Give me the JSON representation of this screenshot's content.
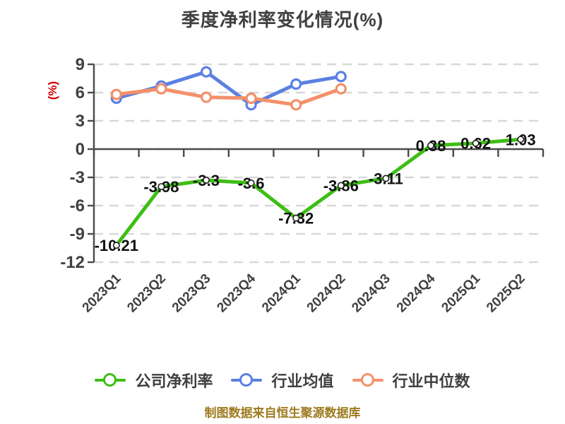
{
  "page": {
    "background": "#ffffff"
  },
  "chart_data": {
    "type": "line",
    "title": "季度净利率变化情况(%)",
    "ylabel": "(%)",
    "footer": "制图数据来自恒生聚源数据库",
    "categories": [
      "2023Q1",
      "2023Q2",
      "2023Q3",
      "2023Q4",
      "2024Q1",
      "2024Q2",
      "2024Q3",
      "2024Q4",
      "2025Q1",
      "2025Q2"
    ],
    "ylim": [
      -12,
      9
    ],
    "yticks": [
      9,
      6,
      3,
      0,
      -3,
      -6,
      -9,
      -12
    ],
    "grid": "horizontal-dashed",
    "legend_position": "bottom",
    "series": [
      {
        "name": "公司净利率",
        "color": "#3dbe14",
        "marker": "small-white-circle-dark-edge",
        "show_labels": true,
        "values": [
          -10.21,
          -3.98,
          -3.3,
          -3.6,
          -7.32,
          -3.86,
          -3.11,
          0.38,
          0.62,
          1.03
        ]
      },
      {
        "name": "行业均值",
        "color": "#5b80e3",
        "marker": "white-circle-blue-edge",
        "show_labels": false,
        "values": [
          5.4,
          6.7,
          8.2,
          4.7,
          6.9,
          7.7,
          null,
          null,
          null,
          null
        ]
      },
      {
        "name": "行业中位数",
        "color": "#f4906a",
        "marker": "white-circle-orange-edge",
        "show_labels": false,
        "values": [
          5.8,
          6.4,
          5.5,
          5.4,
          4.7,
          6.4,
          null,
          null,
          null,
          null
        ]
      }
    ],
    "accent_colors": {
      "title_text": "#404040",
      "axis": "#4a4a4a",
      "grid": "#d8d8d8",
      "tick_text": "#404040",
      "value_label_text": "#121212",
      "ylabel_red": "#d40000",
      "footer_gold": "#9e7a1e"
    }
  }
}
